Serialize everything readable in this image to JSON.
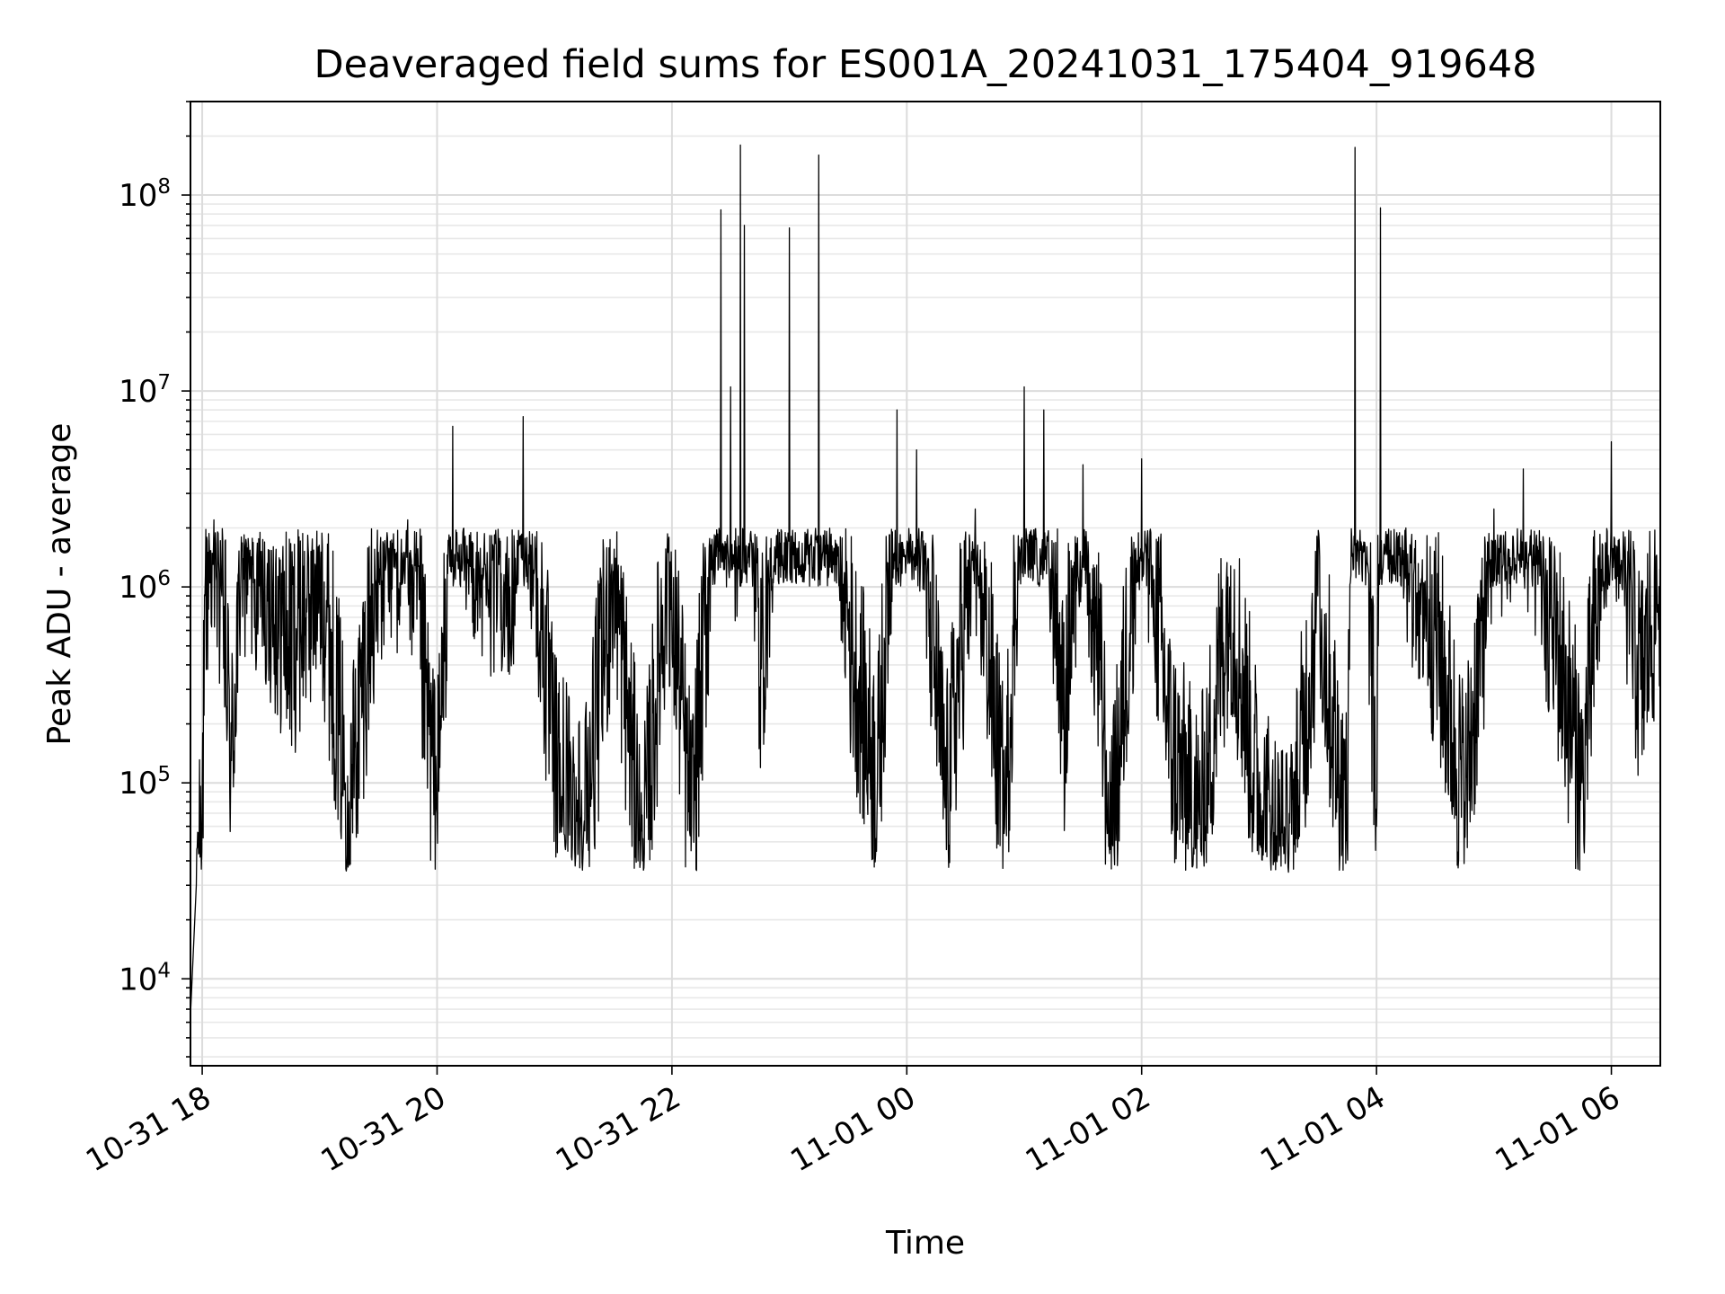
{
  "chart_data": {
    "type": "line",
    "title": "Deaveraged field sums for ES001A_20241031_175404_919648",
    "xlabel": "Time",
    "ylabel": "Peak ADU - average",
    "yscale": "log",
    "ylim": [
      3600,
      300000000
    ],
    "xlim": [
      "2024-10-31 17:54",
      "2024-11-01 06:25"
    ],
    "grid": true,
    "line_color": "#000000",
    "x_tick_labels": [
      "10-31 18",
      "10-31 20",
      "10-31 22",
      "11-01 00",
      "11-01 02",
      "11-01 04",
      "11-01 06"
    ],
    "x_ticks": [
      "2024-10-31 18:00",
      "2024-10-31 20:00",
      "2024-10-31 22:00",
      "2024-11-01 00:00",
      "2024-11-01 02:00",
      "2024-11-01 04:00",
      "2024-11-01 06:00"
    ],
    "y_ticks": [
      {
        "base": "10",
        "exp": "4",
        "value": 10000
      },
      {
        "base": "10",
        "exp": "5",
        "value": 100000
      },
      {
        "base": "10",
        "exp": "6",
        "value": 1000000
      },
      {
        "base": "10",
        "exp": "7",
        "value": 10000000
      },
      {
        "base": "10",
        "exp": "8",
        "value": 100000000
      }
    ],
    "series": [
      {
        "x": [
          "2024-10-31 17:54",
          "2024-10-31 17:57",
          "2024-10-31 18:00",
          "2024-10-31 18:03",
          "2024-10-31 18:06",
          "2024-10-31 18:10",
          "2024-10-31 18:15",
          "2024-10-31 18:20",
          "2024-10-31 18:30",
          "2024-10-31 18:45",
          "2024-10-31 19:00",
          "2024-10-31 19:15",
          "2024-10-31 19:30",
          "2024-10-31 19:45",
          "2024-10-31 20:00",
          "2024-10-31 20:08",
          "2024-10-31 20:20",
          "2024-10-31 20:40",
          "2024-10-31 20:44",
          "2024-10-31 21:00",
          "2024-10-31 21:15",
          "2024-10-31 21:30",
          "2024-10-31 21:45",
          "2024-10-31 21:58",
          "2024-10-31 22:10",
          "2024-10-31 22:20",
          "2024-10-31 22:25",
          "2024-10-31 22:30",
          "2024-10-31 22:33",
          "2024-10-31 22:35",
          "2024-10-31 22:37",
          "2024-10-31 22:45",
          "2024-10-31 23:00",
          "2024-10-31 23:15",
          "2024-10-31 23:30",
          "2024-10-31 23:45",
          "2024-10-31 23:55",
          "2024-11-01 00:05",
          "2024-11-01 00:20",
          "2024-11-01 00:35",
          "2024-11-01 00:50",
          "2024-11-01 01:00",
          "2024-11-01 01:10",
          "2024-11-01 01:20",
          "2024-11-01 01:30",
          "2024-11-01 01:45",
          "2024-11-01 02:00",
          "2024-11-01 02:15",
          "2024-11-01 02:30",
          "2024-11-01 02:45",
          "2024-11-01 03:00",
          "2024-11-01 03:15",
          "2024-11-01 03:30",
          "2024-11-01 03:45",
          "2024-11-01 03:49",
          "2024-11-01 04:00",
          "2024-11-01 04:02",
          "2024-11-01 04:15",
          "2024-11-01 04:30",
          "2024-11-01 04:45",
          "2024-11-01 05:00",
          "2024-11-01 05:15",
          "2024-11-01 05:30",
          "2024-11-01 05:45",
          "2024-11-01 06:00",
          "2024-11-01 06:15",
          "2024-11-01 06:25"
        ],
        "y": [
          6500,
          30000,
          95000,
          1500000,
          2200000,
          900000,
          130000,
          1800000,
          1500000,
          500000,
          1400000,
          80000,
          1500000,
          2200000,
          70000,
          6600000,
          1500000,
          1400000,
          7400000,
          120000,
          60000,
          1200000,
          40000,
          1500000,
          60000,
          1600000,
          84000000,
          10500000,
          1600000,
          180000000,
          70000000,
          300000,
          68000000,
          160000000,
          600000,
          100000,
          8000000,
          5000000,
          80000,
          2500000,
          60000,
          10500000,
          8000000,
          200000,
          4200000,
          50000,
          4500000,
          150000,
          60000,
          1000000,
          80000,
          35000,
          900000,
          50000,
          175000000,
          60000,
          86000000,
          2000000,
          600000,
          80000,
          2500000,
          4000000,
          700000,
          100000,
          5500000,
          300000,
          1200000
        ]
      }
    ]
  }
}
